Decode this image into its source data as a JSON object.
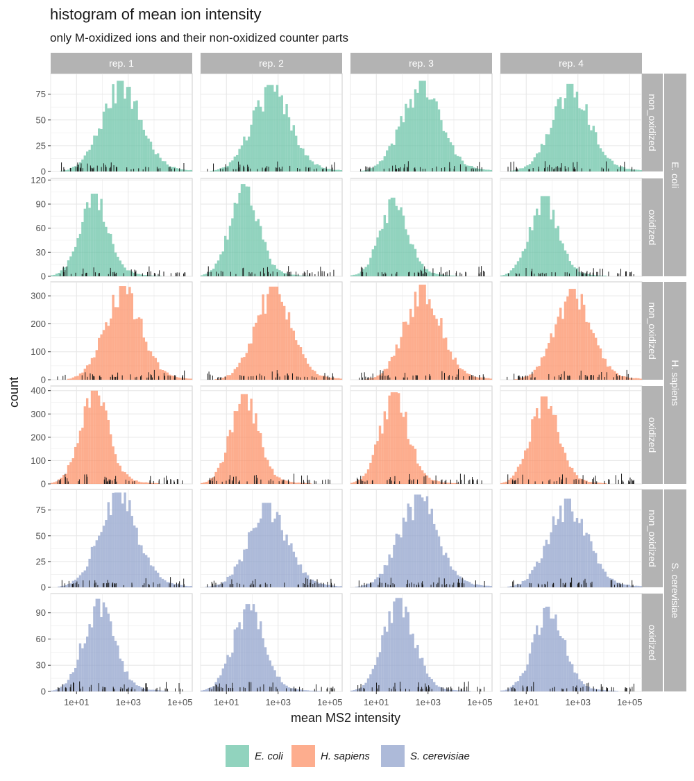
{
  "chart_data": {
    "type": "bar",
    "subtype": "faceted histogram",
    "title": "histogram of mean ion intensity",
    "subtitle": "only M-oxidized ions and their non-oxidized counter parts",
    "xlabel": "mean MS2 intensity",
    "ylabel": "count",
    "x_scale": "log10",
    "x_tick_labels": [
      "1e+01",
      "1e+03",
      "1e+05"
    ],
    "x_ticks": [
      10,
      1000,
      100000
    ],
    "xlim": [
      1,
      300000
    ],
    "grid": true,
    "legend_position": "bottom",
    "rug": true,
    "columns": [
      "rep. 1",
      "rep. 2",
      "rep. 3",
      "rep. 4"
    ],
    "species": [
      {
        "name": "E. coli",
        "color": "#66c2a5"
      },
      {
        "name": "H. sapiens",
        "color": "#fc8d62"
      },
      {
        "name": "S. cerevisiae",
        "color": "#8da0cb"
      }
    ],
    "rows": [
      {
        "species": "E. coli",
        "oxidation": "non_oxidized",
        "y_ticks": [
          0,
          25,
          50,
          75
        ],
        "ylim": [
          0,
          95
        ],
        "peak_log10": 2.75,
        "spread": 0.75,
        "peaks": [
          88,
          84,
          88,
          85
        ]
      },
      {
        "species": "E. coli",
        "oxidation": "oxidized",
        "y_ticks": [
          0,
          30,
          60,
          90,
          120
        ],
        "ylim": [
          0,
          122
        ],
        "peak_log10": 1.7,
        "spread": 0.55,
        "peaks": [
          103,
          115,
          98,
          100
        ]
      },
      {
        "species": "H. sapiens",
        "oxidation": "non_oxidized",
        "y_ticks": [
          0,
          100,
          200,
          300
        ],
        "ylim": [
          0,
          350
        ],
        "peak_log10": 2.8,
        "spread": 0.7,
        "peaks": [
          335,
          333,
          340,
          325
        ]
      },
      {
        "species": "H. sapiens",
        "oxidation": "oxidized",
        "y_ticks": [
          0,
          100,
          200,
          300,
          400
        ],
        "ylim": [
          0,
          420
        ],
        "peak_log10": 1.7,
        "spread": 0.55,
        "peaks": [
          400,
          385,
          393,
          375
        ]
      },
      {
        "species": "S. cerevisiae",
        "oxidation": "non_oxidized",
        "y_ticks": [
          0,
          25,
          50,
          75
        ],
        "ylim": [
          0,
          95
        ],
        "peak_log10": 2.6,
        "spread": 0.75,
        "peaks": [
          92,
          82,
          90,
          86
        ]
      },
      {
        "species": "S. cerevisiae",
        "oxidation": "oxidized",
        "y_ticks": [
          0,
          30,
          60,
          90
        ],
        "ylim": [
          0,
          112
        ],
        "peak_log10": 1.85,
        "spread": 0.6,
        "peaks": [
          106,
          100,
          107,
          97
        ]
      }
    ]
  }
}
